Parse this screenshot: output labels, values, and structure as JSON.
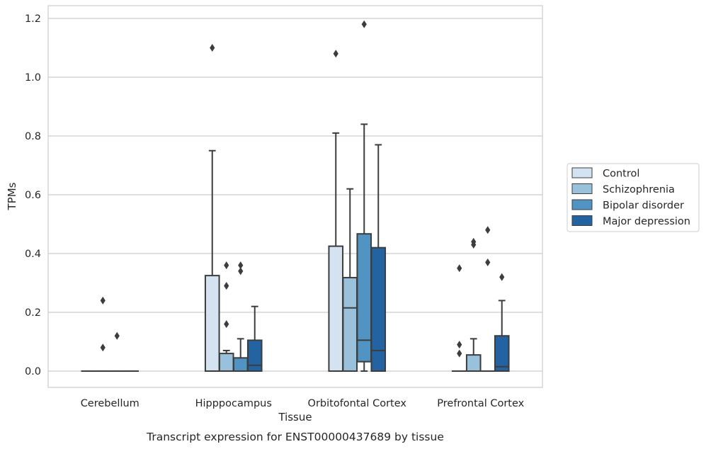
{
  "caption": "Transcript expression for ENST00000437689 by tissue",
  "chart_data": {
    "type": "box",
    "xlabel": "Tissue",
    "ylabel": "TPMs",
    "ylim": [
      -0.057,
      1.24
    ],
    "yticks": [
      "0.0",
      "0.2",
      "0.4",
      "0.6",
      "0.8",
      "1.0",
      "1.2"
    ],
    "grid": "horizontal",
    "legend_position": "right",
    "categories": [
      "Cerebellum",
      "Hipppocampus",
      "Orbitofontal Cortex",
      "Prefrontal Cortex"
    ],
    "series": [
      {
        "name": "Control",
        "color": "#d3e3f2",
        "boxes": [
          {
            "q1": 0,
            "median": 0,
            "q3": 0,
            "whisker_low": 0,
            "whisker_high": 0,
            "outliers": []
          },
          {
            "q1": 0,
            "median": 0,
            "q3": 0.325,
            "whisker_low": 0,
            "whisker_high": 0.75,
            "outliers": [
              1.1
            ]
          },
          {
            "q1": 0,
            "median": 0,
            "q3": 0.425,
            "whisker_low": 0,
            "whisker_high": 0.81,
            "outliers": [
              1.08
            ]
          },
          {
            "q1": 0,
            "median": 0,
            "q3": 0,
            "whisker_low": 0,
            "whisker_high": 0,
            "outliers": [
              0.35,
              0.09,
              0.06
            ]
          }
        ]
      },
      {
        "name": "Schizophrenia",
        "color": "#9ac1db",
        "boxes": [
          {
            "q1": 0,
            "median": 0,
            "q3": 0,
            "whisker_low": 0,
            "whisker_high": 0,
            "outliers": [
              0.24,
              0.08
            ]
          },
          {
            "q1": 0,
            "median": 0,
            "q3": 0.06,
            "whisker_low": 0,
            "whisker_high": 0.07,
            "outliers": [
              0.36,
              0.29,
              0.16
            ]
          },
          {
            "q1": 0,
            "median": 0.215,
            "q3": 0.318,
            "whisker_low": 0,
            "whisker_high": 0.62,
            "outliers": []
          },
          {
            "q1": 0,
            "median": 0,
            "q3": 0.055,
            "whisker_low": 0,
            "whisker_high": 0.11,
            "outliers": [
              0.44,
              0.43
            ]
          }
        ]
      },
      {
        "name": "Bipolar disorder",
        "color": "#5193c2",
        "boxes": [
          {
            "q1": 0,
            "median": 0,
            "q3": 0,
            "whisker_low": 0,
            "whisker_high": 0,
            "outliers": [
              0.12
            ]
          },
          {
            "q1": 0,
            "median": 0,
            "q3": 0.045,
            "whisker_low": 0,
            "whisker_high": 0.11,
            "outliers": [
              0.36,
              0.34
            ]
          },
          {
            "q1": 0.032,
            "median": 0.105,
            "q3": 0.467,
            "whisker_low": 0,
            "whisker_high": 0.84,
            "outliers": [
              1.18
            ]
          },
          {
            "q1": 0,
            "median": 0,
            "q3": 0,
            "whisker_low": 0,
            "whisker_high": 0,
            "outliers": [
              0.48,
              0.37
            ]
          }
        ]
      },
      {
        "name": "Major depression",
        "color": "#2463a1",
        "boxes": [
          {
            "q1": 0,
            "median": 0,
            "q3": 0,
            "whisker_low": 0,
            "whisker_high": 0,
            "outliers": []
          },
          {
            "q1": 0,
            "median": 0.02,
            "q3": 0.105,
            "whisker_low": 0,
            "whisker_high": 0.22,
            "outliers": []
          },
          {
            "q1": 0,
            "median": 0.07,
            "q3": 0.42,
            "whisker_low": 0,
            "whisker_high": 0.77,
            "outliers": []
          },
          {
            "q1": 0,
            "median": 0.015,
            "q3": 0.12,
            "whisker_low": 0,
            "whisker_high": 0.24,
            "outliers": [
              0.32
            ]
          }
        ]
      }
    ]
  }
}
